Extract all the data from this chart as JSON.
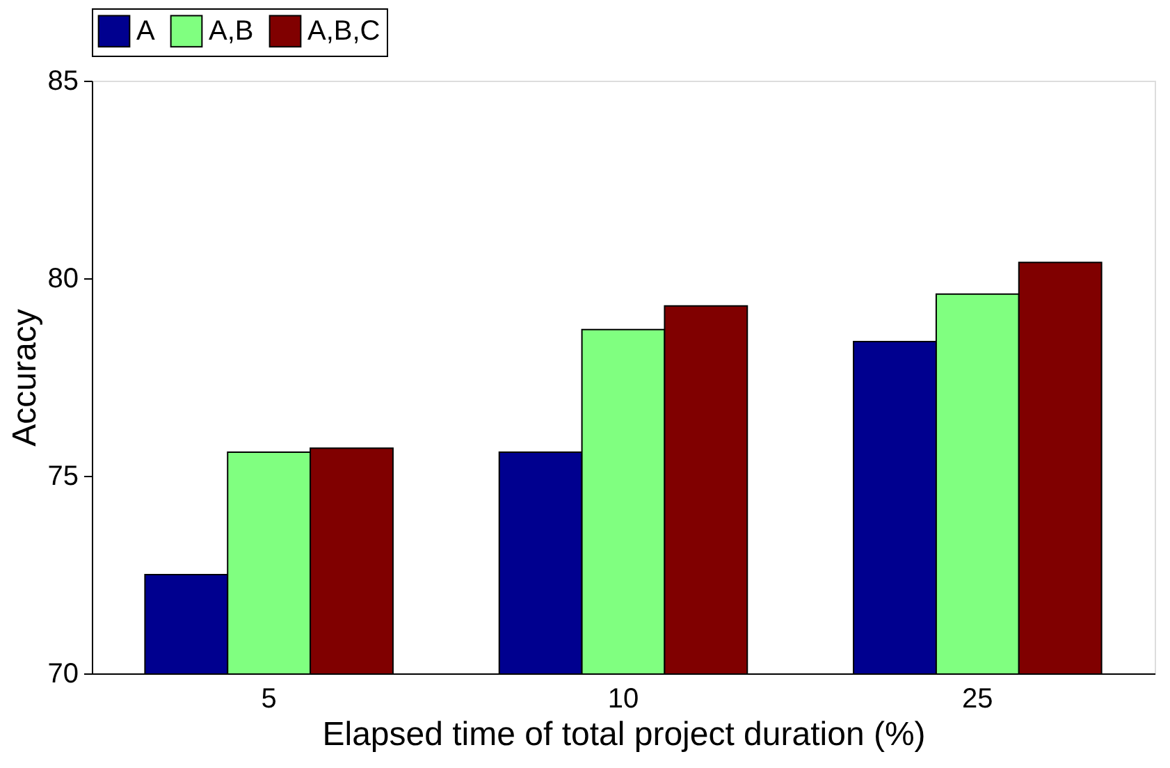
{
  "chart_data": {
    "type": "bar",
    "xlabel": "Elapsed time of total project duration (%)",
    "ylabel": "Accuracy",
    "categories": [
      "5",
      "10",
      "25"
    ],
    "series": [
      {
        "name": "A",
        "color": "#00008f",
        "values": [
          72.5,
          75.6,
          78.4
        ]
      },
      {
        "name": "A,B",
        "color": "#80ff80",
        "values": [
          75.6,
          78.7,
          79.6
        ]
      },
      {
        "name": "A,B,C",
        "color": "#800000",
        "values": [
          75.7,
          79.3,
          80.4
        ]
      }
    ],
    "ylim": [
      70,
      85
    ],
    "yticks": [
      70,
      75,
      80,
      85
    ],
    "grid": false,
    "legend": "top"
  }
}
